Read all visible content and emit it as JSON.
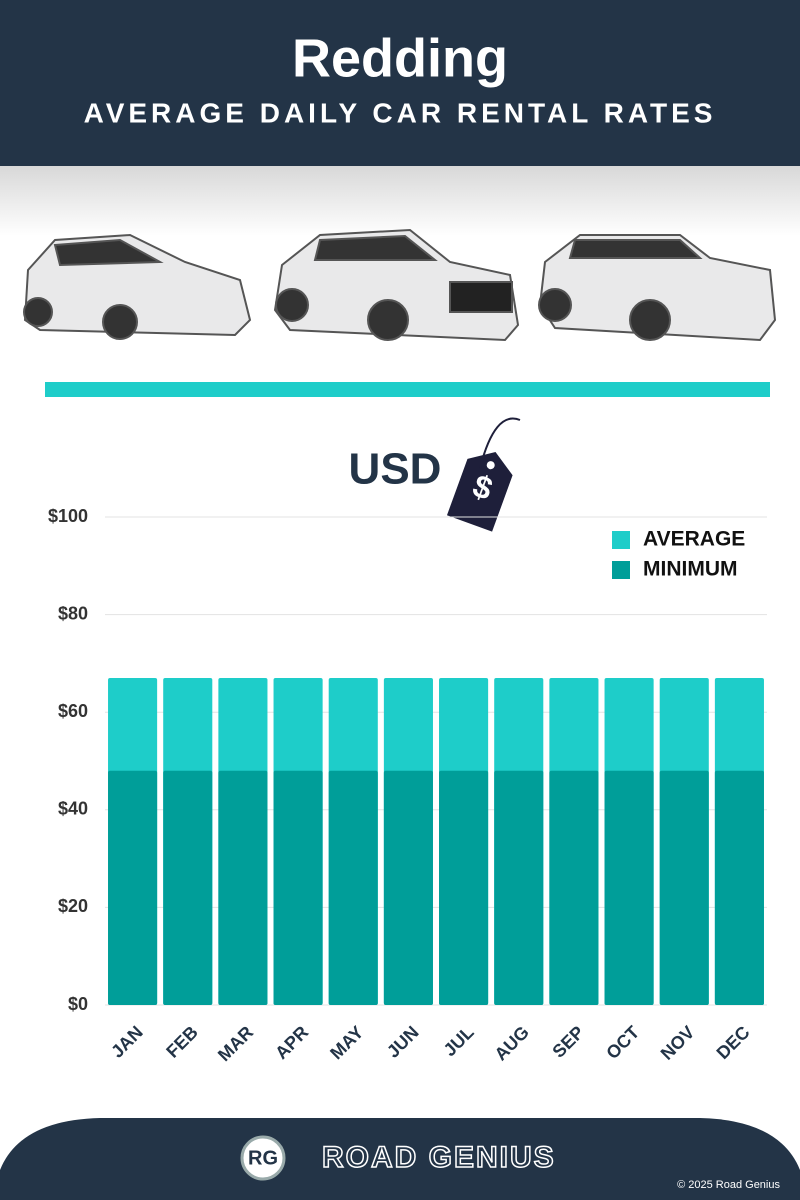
{
  "header": {
    "title": "Redding",
    "subtitle": "AVERAGE DAILY CAR RENTAL RATES"
  },
  "currency": {
    "label": "USD",
    "symbol": "$"
  },
  "chart_data": {
    "type": "bar",
    "overlay": true,
    "categories": [
      "JAN",
      "FEB",
      "MAR",
      "APR",
      "MAY",
      "JUN",
      "JUL",
      "AUG",
      "SEP",
      "OCT",
      "NOV",
      "DEC"
    ],
    "series": [
      {
        "name": "AVERAGE",
        "color": "#1ecdc9",
        "values": [
          67,
          67,
          67,
          67,
          67,
          67,
          67,
          67,
          67,
          67,
          67,
          67
        ]
      },
      {
        "name": "MINIMUM",
        "color": "#009e99",
        "values": [
          48,
          48,
          48,
          48,
          48,
          48,
          48,
          48,
          48,
          48,
          48,
          48
        ]
      }
    ],
    "ylim": [
      0,
      100
    ],
    "yticks": [
      {
        "value": 0,
        "label": "$0"
      },
      {
        "value": 20,
        "label": "$20"
      },
      {
        "value": 40,
        "label": "$40"
      },
      {
        "value": 60,
        "label": "$60"
      },
      {
        "value": 80,
        "label": "$80"
      },
      {
        "value": 100,
        "label": "$100"
      }
    ],
    "grid": true,
    "legend": "upper right"
  },
  "footer": {
    "logo": "RG",
    "brand": "ROAD GENIUS",
    "copyright": "© 2025 Road Genius"
  }
}
